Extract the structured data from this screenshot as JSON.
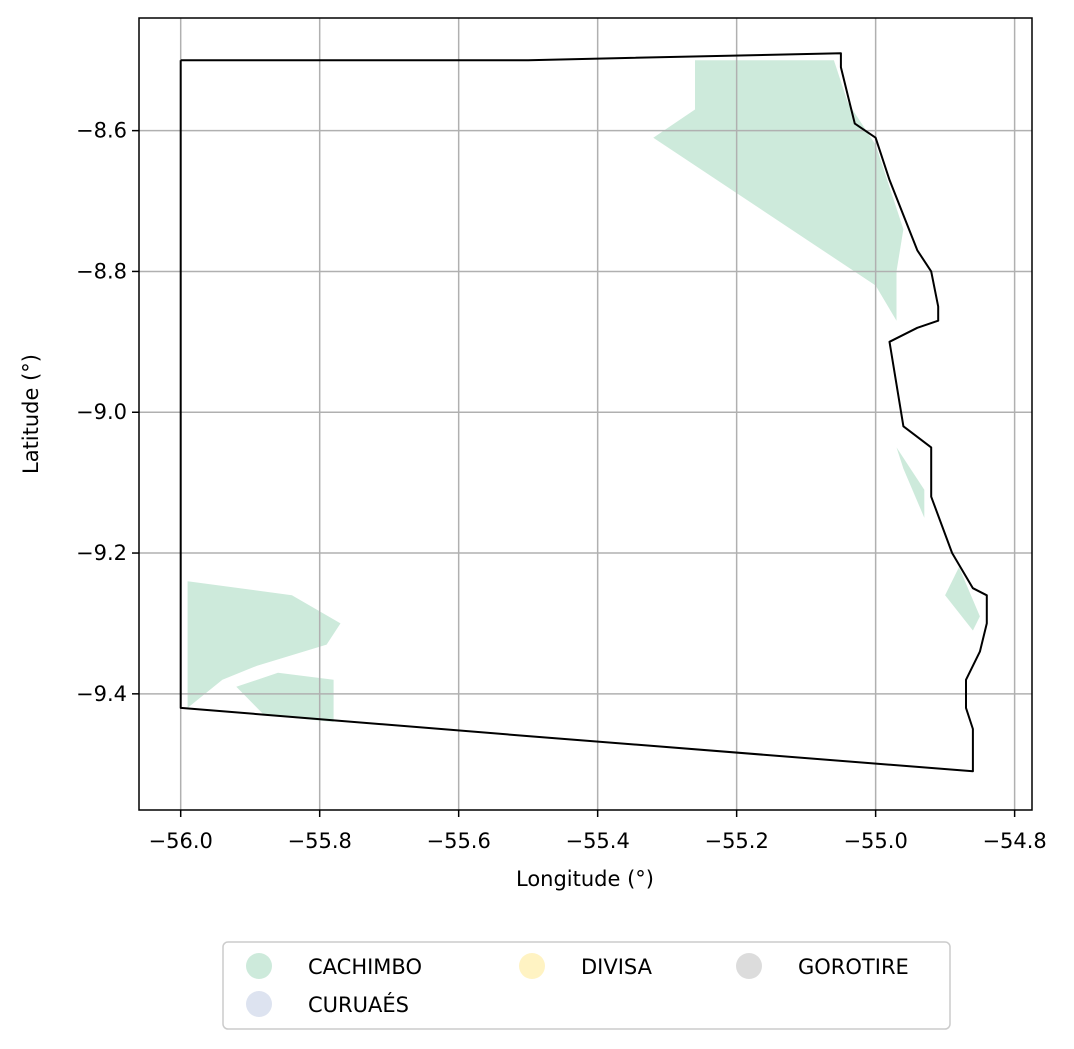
{
  "chart_data": {
    "type": "map",
    "title": "",
    "xlabel": "Longitude (°)",
    "ylabel": "Latitude (°)",
    "xlim": [
      -56.06,
      -54.775
    ],
    "ylim": [
      -9.565,
      -8.44
    ],
    "x_ticks": [
      {
        "value": -56.0,
        "label": "−56.0"
      },
      {
        "value": -55.8,
        "label": "−55.8"
      },
      {
        "value": -55.6,
        "label": "−55.6"
      },
      {
        "value": -55.4,
        "label": "−55.4"
      },
      {
        "value": -55.2,
        "label": "−55.2"
      },
      {
        "value": -55.0,
        "label": "−55.0"
      },
      {
        "value": -54.8,
        "label": "−54.8"
      }
    ],
    "y_ticks": [
      {
        "value": -8.6,
        "label": "−8.6"
      },
      {
        "value": -8.8,
        "label": "−8.8"
      },
      {
        "value": -9.0,
        "label": "−9.0"
      },
      {
        "value": -9.2,
        "label": "−9.2"
      },
      {
        "value": -9.4,
        "label": "−9.4"
      }
    ],
    "grid": true,
    "legend_placement": "bottom-center",
    "legend": [
      {
        "name": "CACHIMBO",
        "color": "#cdeadb"
      },
      {
        "name": "DIVISA",
        "color": "#fff3c3"
      },
      {
        "name": "GOROTIRE",
        "color": "#dcdcdc"
      },
      {
        "name": "CURUAÉS",
        "color": "#dde3f0"
      }
    ],
    "boundary": [
      [
        -56.0,
        -8.5
      ],
      [
        -55.5,
        -8.5
      ],
      [
        -55.05,
        -8.49
      ],
      [
        -55.05,
        -8.51
      ],
      [
        -55.04,
        -8.55
      ],
      [
        -55.03,
        -8.59
      ],
      [
        -55.0,
        -8.61
      ],
      [
        -54.98,
        -8.67
      ],
      [
        -54.96,
        -8.72
      ],
      [
        -54.94,
        -8.77
      ],
      [
        -54.92,
        -8.8
      ],
      [
        -54.91,
        -8.85
      ],
      [
        -54.91,
        -8.87
      ],
      [
        -54.94,
        -8.88
      ],
      [
        -54.98,
        -8.9
      ],
      [
        -54.96,
        -9.02
      ],
      [
        -54.92,
        -9.05
      ],
      [
        -54.92,
        -9.12
      ],
      [
        -54.89,
        -9.2
      ],
      [
        -54.86,
        -9.25
      ],
      [
        -54.84,
        -9.26
      ],
      [
        -54.84,
        -9.3
      ],
      [
        -54.85,
        -9.34
      ],
      [
        -54.87,
        -9.38
      ],
      [
        -54.87,
        -9.42
      ],
      [
        -54.86,
        -9.45
      ],
      [
        -54.86,
        -9.51
      ],
      [
        -55.5,
        -9.46
      ],
      [
        -56.0,
        -9.42
      ],
      [
        -56.0,
        -8.5
      ]
    ],
    "zones": [
      {
        "name": "CACHIMBO",
        "color": "#cdeadb",
        "polygons": [
          [
            [
              -55.26,
              -8.5
            ],
            [
              -55.06,
              -8.5
            ],
            [
              -55.04,
              -8.56
            ],
            [
              -55.0,
              -8.62
            ],
            [
              -54.98,
              -8.68
            ],
            [
              -54.96,
              -8.74
            ],
            [
              -54.97,
              -8.8
            ],
            [
              -54.97,
              -8.87
            ],
            [
              -55.0,
              -8.82
            ],
            [
              -55.32,
              -8.61
            ],
            [
              -55.26,
              -8.57
            ]
          ],
          [
            [
              -54.97,
              -9.05
            ],
            [
              -54.93,
              -9.11
            ],
            [
              -54.93,
              -9.15
            ],
            [
              -54.96,
              -9.08
            ]
          ],
          [
            [
              -54.88,
              -9.22
            ],
            [
              -54.85,
              -9.29
            ],
            [
              -54.86,
              -9.31
            ],
            [
              -54.9,
              -9.26
            ]
          ],
          [
            [
              -55.99,
              -9.24
            ],
            [
              -55.84,
              -9.26
            ],
            [
              -55.77,
              -9.3
            ],
            [
              -55.79,
              -9.33
            ],
            [
              -55.89,
              -9.36
            ],
            [
              -55.94,
              -9.38
            ],
            [
              -55.99,
              -9.42
            ]
          ],
          [
            [
              -55.92,
              -9.39
            ],
            [
              -55.86,
              -9.37
            ],
            [
              -55.78,
              -9.38
            ],
            [
              -55.78,
              -9.44
            ],
            [
              -55.88,
              -9.43
            ]
          ]
        ]
      }
    ]
  }
}
